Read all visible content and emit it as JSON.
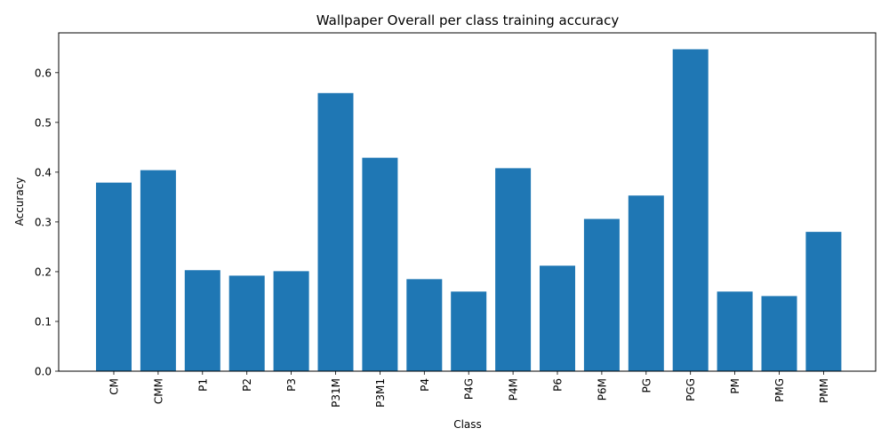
{
  "chart_data": {
    "type": "bar",
    "title": "Wallpaper Overall per class training accuracy",
    "xlabel": "Class",
    "ylabel": "Accuracy",
    "categories": [
      "CM",
      "CMM",
      "P1",
      "P2",
      "P3",
      "P31M",
      "P3M1",
      "P4",
      "P4G",
      "P4M",
      "P6",
      "P6M",
      "PG",
      "PGG",
      "PM",
      "PMG",
      "PMM"
    ],
    "values": [
      0.379,
      0.404,
      0.203,
      0.192,
      0.201,
      0.559,
      0.429,
      0.185,
      0.16,
      0.408,
      0.212,
      0.306,
      0.353,
      0.647,
      0.16,
      0.151,
      0.28
    ],
    "ylim": [
      0,
      0.68
    ],
    "yticks": [
      "0.0",
      "0.1",
      "0.2",
      "0.3",
      "0.4",
      "0.5",
      "0.6"
    ],
    "bar_color": "#1f77b4",
    "grid": false,
    "legend": "none"
  }
}
